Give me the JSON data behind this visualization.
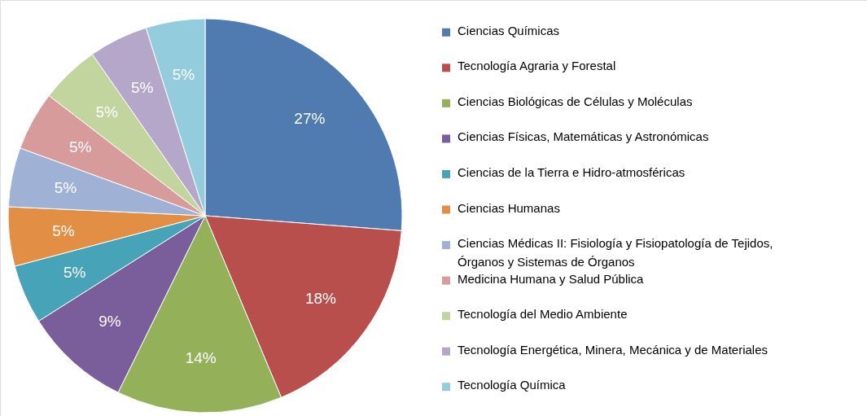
{
  "chart_data": {
    "type": "pie",
    "categories": [
      "Ciencias Químicas",
      "Tecnología Agraria y Forestal",
      "Ciencias Biológicas de Células y Moléculas",
      "Ciencias Físicas, Matemáticas y Astronómicas",
      "Ciencias de la Tierra e Hidro-atmosféricas",
      "Ciencias Humanas",
      "Ciencias Médicas II: Fisiología y Fisiopatología de Tejidos, Órganos y Sistemas de Órganos",
      "Medicina Humana y Salud Pública",
      "Tecnología del Medio Ambiente",
      "Tecnología Energética, Minera, Mecánica y de Materiales",
      "Tecnología Química"
    ],
    "values": [
      27,
      18,
      14,
      9,
      5,
      5,
      5,
      5,
      5,
      5,
      5
    ],
    "value_labels": [
      "27%",
      "18%",
      "14%",
      "9%",
      "5%",
      "5%",
      "5%",
      "5%",
      "5%",
      "5%",
      "5%"
    ],
    "colors": [
      "#4f7bb0",
      "#b84f4c",
      "#94b15a",
      "#7a5e9b",
      "#47a3b8",
      "#e28f45",
      "#9fb2d6",
      "#d69b9a",
      "#c3d59f",
      "#b4a7c9",
      "#93cddd"
    ],
    "legend": "right"
  }
}
